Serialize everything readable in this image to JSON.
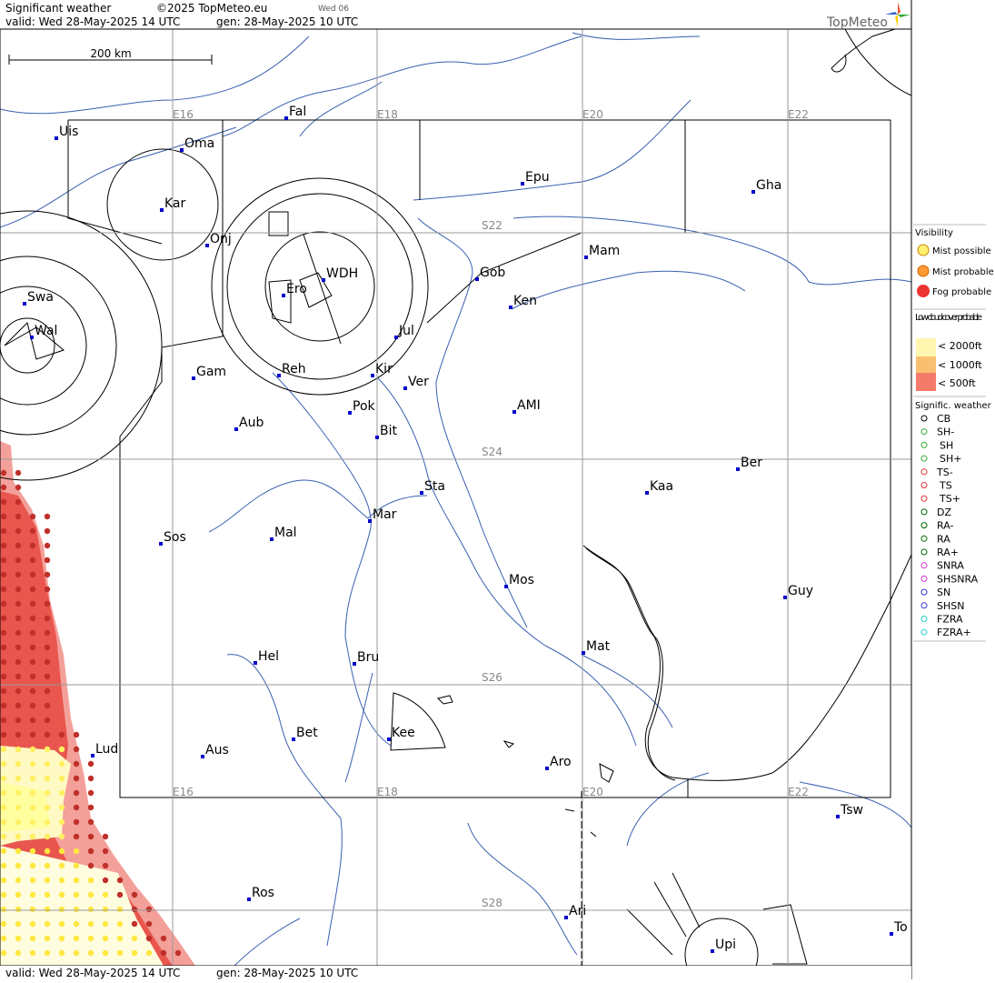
{
  "header": {
    "title": "Significant weather",
    "copyright": "©2025 TopMeteo.eu",
    "run": "Wed 06",
    "valid": "valid:  Wed  28-May-2025  14 UTC",
    "gen": "gen:  28-May-2025 10 UTC",
    "logo": "TopMeteo",
    "scale": "200 km"
  },
  "footer": {
    "valid": "valid:  Wed  28-May-2025  14 UTC",
    "gen": "gen:  28-May-2025 10 UTC"
  },
  "grid": {
    "lon_top": [
      "E16",
      "E18",
      "E20",
      "E22"
    ],
    "lon_bottom": [
      "E16",
      "E18",
      "E20",
      "E22"
    ],
    "lat": [
      "S22",
      "S24",
      "S26",
      "S28"
    ]
  },
  "places": [
    "Uis",
    "Fal",
    "Oma",
    "Kar",
    "Onj",
    "Swa",
    "Wal",
    "Ero",
    "WDH",
    "Gob",
    "Mam",
    "Ken",
    "Epu",
    "Gha",
    "Jul",
    "Gam",
    "Reh",
    "Kir",
    "Ver",
    "Pok",
    "AMI",
    "Aub",
    "Bit",
    "Sta",
    "Ber",
    "Kaa",
    "Mar",
    "Sos",
    "Mal",
    "Mos",
    "Guy",
    "Mat",
    "Hel",
    "Bru",
    "Bet",
    "Kee",
    "Lud",
    "Aus",
    "Aro",
    "Tsw",
    "Ros",
    "Ari",
    "Upi",
    "To"
  ],
  "legend": {
    "visibility": {
      "title": "Visibility",
      "items": [
        "Mist possible",
        "Mist probable",
        "Fog probable"
      ]
    },
    "low_cloud": {
      "title": "Low cloud cover probable",
      "items": [
        "< 2000ft",
        "< 1000ft",
        "<   500ft"
      ]
    },
    "weather": {
      "title": "Signific. weather",
      "items": [
        "CB",
        "SH-",
        "SH",
        "SH+",
        "TS-",
        "TS",
        "TS+",
        "DZ",
        "RA-",
        "RA",
        "RA+",
        "SNRA",
        "SHSNRA",
        "SN",
        "SHSN",
        "FZRA",
        "FZRA+"
      ]
    }
  }
}
